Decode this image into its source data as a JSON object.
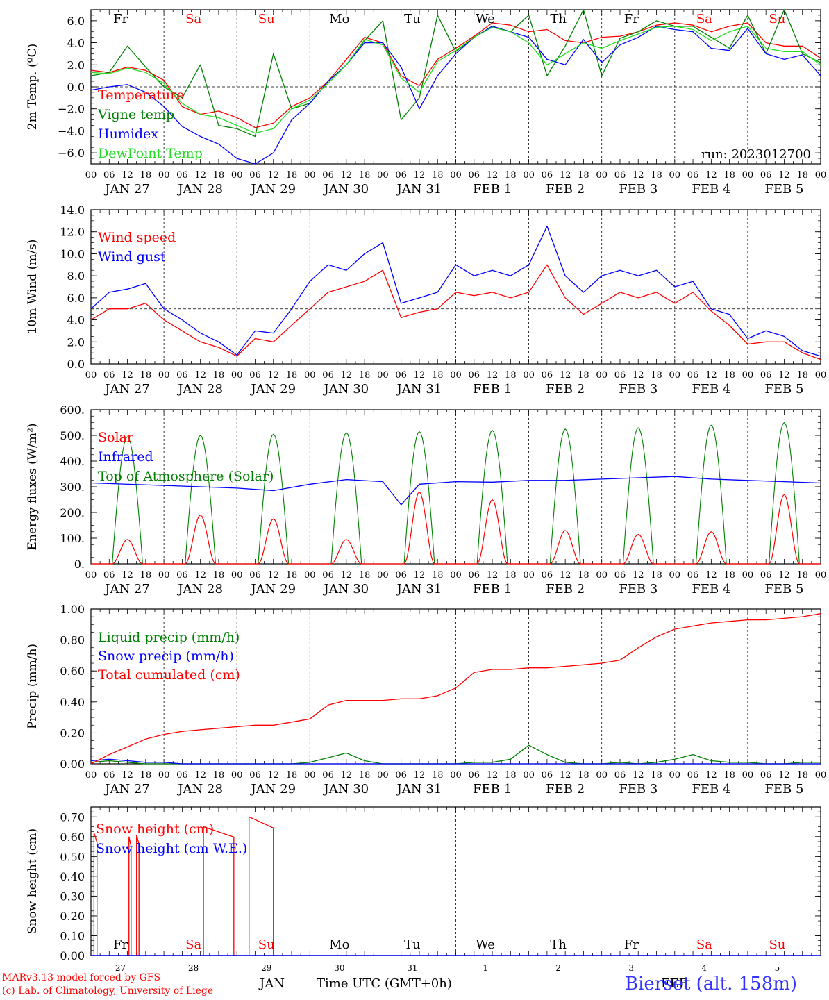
{
  "colors": {
    "red": "#ff0000",
    "green": "#008000",
    "blue": "#0000ff",
    "lightgreen": "#22dd22",
    "axis": "#000000"
  },
  "days": [
    "JAN 27",
    "JAN 28",
    "JAN 29",
    "JAN 30",
    "JAN 31",
    "FEB  1",
    "FEB  2",
    "FEB  3",
    "FEB  4",
    "FEB  5"
  ],
  "hour_ticks": [
    "00",
    "06",
    "12",
    "18"
  ],
  "weekdays": [
    {
      "label": "Fr",
      "color": "black"
    },
    {
      "label": "Sa",
      "color": "red"
    },
    {
      "label": "Su",
      "color": "red"
    },
    {
      "label": "Mo",
      "color": "black"
    },
    {
      "label": "Tu",
      "color": "black"
    },
    {
      "label": "We",
      "color": "black"
    },
    {
      "label": "Th",
      "color": "black"
    },
    {
      "label": "Fr",
      "color": "black"
    },
    {
      "label": "Sa",
      "color": "red"
    },
    {
      "label": "Su",
      "color": "red"
    }
  ],
  "bottom_day_numbers": [
    "27",
    "28",
    "29",
    "30",
    "31",
    "1",
    "2",
    "3",
    "4",
    "5"
  ],
  "footer": {
    "credit1": "MARv3.13 model forced by GFS",
    "credit2": "(c) Lab. of Climatology, University of Liege",
    "month_jan": "JAN",
    "month_feb": "FEB",
    "xlabel": "Time UTC (GMT+0h)",
    "station": "Bierset (alt. 158m)"
  },
  "chart_data": [
    {
      "type": "line",
      "ylabel": "2m Temp. (ºC)",
      "ylim": [
        -7,
        7
      ],
      "yticks": [
        "6.0",
        "4.0",
        "2.0",
        "0.0",
        "−2.0",
        "−4.0",
        "−6.0"
      ],
      "ytick_values": [
        6,
        4,
        2,
        0,
        -2,
        -4,
        -6
      ],
      "annotation": "run: 2023012700",
      "reference_line": 0,
      "x": [
        0,
        6,
        12,
        18,
        24,
        30,
        36,
        42,
        48,
        54,
        60,
        66,
        72,
        78,
        84,
        90,
        96,
        102,
        108,
        114,
        120,
        126,
        132,
        138,
        144,
        150,
        156,
        162,
        168,
        174,
        180,
        186,
        192,
        198,
        204,
        210,
        216,
        222,
        228,
        234,
        240
      ],
      "series": [
        {
          "name": "Temperature",
          "color": "red",
          "values": [
            1.5,
            1.3,
            1.8,
            1.5,
            0.6,
            -1.8,
            -2.5,
            -2.2,
            -2.8,
            -3.7,
            -3.3,
            -1.8,
            -1.0,
            0.5,
            2.5,
            4.5,
            4.0,
            1.0,
            0.1,
            2.5,
            3.5,
            4.6,
            5.8,
            5.6,
            5.0,
            5.2,
            4.2,
            4.0,
            4.5,
            4.6,
            5.0,
            5.6,
            5.8,
            5.6,
            5.0,
            5.5,
            5.8,
            4.0,
            3.7,
            3.7,
            2.6
          ]
        },
        {
          "name": "Vigne temp",
          "color": "green",
          "values": [
            1.0,
            1.3,
            3.7,
            1.8,
            0.0,
            -1.0,
            2.0,
            -3.5,
            -3.8,
            -4.5,
            3.0,
            -2.0,
            -1.5,
            0.5,
            2.0,
            4.2,
            6.0,
            -3.0,
            -1.0,
            6.5,
            3.2,
            4.5,
            5.5,
            5.0,
            6.5,
            1.0,
            3.7,
            7.0,
            1.0,
            4.4,
            5.0,
            6.0,
            5.5,
            5.5,
            4.5,
            3.5,
            6.5,
            3.0,
            7.0,
            3.0,
            2.2
          ]
        },
        {
          "name": "Humidex",
          "color": "blue",
          "values": [
            -0.3,
            0.0,
            0.2,
            -0.5,
            -1.8,
            -3.6,
            -4.5,
            -5.2,
            -6.5,
            -7.0,
            -6.0,
            -3.0,
            -1.5,
            0.5,
            2.0,
            4.0,
            4.0,
            1.8,
            -2.0,
            1.0,
            3.0,
            4.5,
            5.5,
            5.0,
            4.5,
            2.5,
            2.0,
            4.3,
            2.2,
            3.8,
            4.5,
            5.5,
            5.2,
            5.0,
            3.5,
            3.3,
            5.3,
            3.0,
            2.5,
            2.9,
            1.0
          ]
        },
        {
          "name": "DewPoint Temp",
          "color": "lightgreen",
          "values": [
            1.3,
            1.2,
            1.7,
            1.3,
            0.3,
            -1.5,
            -2.5,
            -2.8,
            -3.5,
            -4.2,
            -3.8,
            -2.0,
            -1.2,
            0.3,
            2.0,
            4.3,
            3.8,
            0.8,
            -0.5,
            2.3,
            3.3,
            4.5,
            5.4,
            5.0,
            4.0,
            2.0,
            3.0,
            4.0,
            3.5,
            4.2,
            4.8,
            5.4,
            5.5,
            5.2,
            4.2,
            5.0,
            5.5,
            3.5,
            3.2,
            3.2,
            2.0
          ]
        }
      ]
    },
    {
      "type": "line",
      "ylabel": "10m Wind (m/s)",
      "ylim": [
        0,
        14
      ],
      "yticks": [
        "14.0",
        "12.0",
        "10.0",
        "8.0",
        "6.0",
        "4.0",
        "2.0",
        "0.0"
      ],
      "ytick_values": [
        14,
        12,
        10,
        8,
        6,
        4,
        2,
        0
      ],
      "reference_line": 5,
      "x": [
        0,
        6,
        12,
        18,
        24,
        30,
        36,
        42,
        48,
        54,
        60,
        66,
        72,
        78,
        84,
        90,
        96,
        102,
        108,
        114,
        120,
        126,
        132,
        138,
        144,
        150,
        156,
        162,
        168,
        174,
        180,
        186,
        192,
        198,
        204,
        210,
        216,
        222,
        228,
        234,
        240
      ],
      "series": [
        {
          "name": "Wind speed",
          "color": "red",
          "values": [
            4.0,
            5.0,
            5.0,
            5.5,
            4.0,
            3.0,
            2.0,
            1.5,
            0.7,
            2.3,
            2.0,
            3.5,
            5.0,
            6.5,
            7.0,
            7.5,
            8.5,
            4.2,
            4.7,
            5.0,
            6.5,
            6.2,
            6.5,
            6.0,
            6.5,
            9.0,
            6.0,
            4.5,
            5.5,
            6.5,
            6.0,
            6.5,
            5.5,
            6.5,
            4.8,
            3.5,
            1.8,
            2.0,
            2.0,
            1.0,
            0.4
          ]
        },
        {
          "name": "Wind gust",
          "color": "blue",
          "values": [
            5.0,
            6.5,
            6.8,
            7.3,
            5.0,
            4.0,
            2.8,
            2.0,
            0.8,
            3.0,
            2.8,
            5.0,
            7.5,
            9.0,
            8.5,
            10.0,
            11.0,
            5.5,
            6.0,
            6.5,
            9.0,
            8.0,
            8.5,
            8.0,
            9.0,
            12.5,
            8.0,
            6.5,
            8.0,
            8.5,
            8.0,
            8.5,
            7.0,
            7.5,
            5.0,
            4.5,
            2.3,
            3.0,
            2.5,
            1.2,
            0.7
          ]
        }
      ]
    },
    {
      "type": "line",
      "ylabel": "Energy fluxes (W/m²)",
      "ylim": [
        0,
        600
      ],
      "yticks": [
        "600.",
        "500.",
        "400.",
        "300.",
        "200.",
        "100.",
        "0."
      ],
      "ytick_values": [
        600,
        500,
        400,
        300,
        200,
        100,
        0
      ],
      "daily_peaks": {
        "top_of_atmosphere": [
          495,
          500,
          505,
          510,
          515,
          520,
          525,
          530,
          540,
          550
        ],
        "solar": [
          95,
          190,
          175,
          95,
          280,
          250,
          130,
          115,
          125,
          270
        ]
      },
      "infrared_x": [
        0,
        24,
        48,
        60,
        72,
        84,
        96,
        102,
        108,
        120,
        132,
        144,
        156,
        168,
        180,
        192,
        204,
        216,
        228,
        240
      ],
      "infrared_values": [
        315,
        305,
        295,
        285,
        310,
        328,
        320,
        230,
        310,
        320,
        318,
        325,
        325,
        330,
        335,
        340,
        330,
        325,
        320,
        315
      ],
      "series": [
        {
          "name": "Solar",
          "color": "red"
        },
        {
          "name": "Infrared",
          "color": "blue"
        },
        {
          "name": "Top of Atmosphere (Solar)",
          "color": "green"
        }
      ]
    },
    {
      "type": "line",
      "ylabel": "Precip (mm/h)",
      "ylim": [
        0,
        1
      ],
      "yticks": [
        "1.00",
        "0.80",
        "0.60",
        "0.40",
        "0.20",
        "0.00"
      ],
      "ytick_values": [
        1.0,
        0.8,
        0.6,
        0.4,
        0.2,
        0.0
      ],
      "x": [
        0,
        6,
        12,
        18,
        24,
        30,
        36,
        42,
        48,
        54,
        60,
        66,
        72,
        78,
        84,
        90,
        96,
        102,
        108,
        114,
        120,
        126,
        132,
        138,
        144,
        150,
        156,
        162,
        168,
        174,
        180,
        186,
        192,
        198,
        204,
        210,
        216,
        222,
        228,
        234,
        240
      ],
      "series": [
        {
          "name": "Liquid precip (mm/h)",
          "color": "green",
          "values": [
            0.01,
            0.02,
            0.01,
            0.0,
            0.0,
            0.0,
            0.0,
            0.0,
            0.0,
            0.0,
            0.0,
            0.0,
            0.01,
            0.04,
            0.07,
            0.02,
            0.0,
            0.0,
            0.0,
            0.0,
            0.0,
            0.01,
            0.01,
            0.03,
            0.12,
            0.06,
            0.01,
            0.0,
            0.0,
            0.01,
            0.0,
            0.01,
            0.03,
            0.06,
            0.02,
            0.01,
            0.01,
            0.0,
            0.0,
            0.01,
            0.01
          ]
        },
        {
          "name": "Snow precip (mm/h)",
          "color": "blue",
          "values": [
            0.02,
            0.03,
            0.02,
            0.01,
            0.01,
            0.0,
            0.0,
            0.0,
            0.0,
            0.0,
            0.0,
            0.0,
            0.0,
            0.0,
            0.0,
            0.0,
            0.0,
            0.0,
            0.0,
            0.0,
            0.0,
            0.0,
            0.0,
            0.0,
            0.0,
            0.0,
            0.0,
            0.0,
            0.0,
            0.0,
            0.0,
            0.0,
            0.0,
            0.0,
            0.0,
            0.0,
            0.0,
            0.0,
            0.0,
            0.0,
            0.0
          ]
        },
        {
          "name": "Total cumulated (cm)",
          "color": "red",
          "values": [
            0.0,
            0.06,
            0.11,
            0.16,
            0.19,
            0.21,
            0.22,
            0.23,
            0.24,
            0.25,
            0.25,
            0.27,
            0.29,
            0.38,
            0.41,
            0.41,
            0.41,
            0.42,
            0.42,
            0.44,
            0.49,
            0.59,
            0.61,
            0.61,
            0.62,
            0.62,
            0.63,
            0.64,
            0.65,
            0.67,
            0.75,
            0.82,
            0.87,
            0.89,
            0.91,
            0.92,
            0.93,
            0.93,
            0.94,
            0.95,
            0.97
          ]
        }
      ]
    },
    {
      "type": "line",
      "ylabel": "Snow height (cm)",
      "ylim": [
        0,
        0.75
      ],
      "yticks": [
        "0.70",
        "0.60",
        "0.50",
        "0.40",
        "0.30",
        "0.20",
        "0.10",
        "0.00"
      ],
      "ytick_values": [
        0.7,
        0.6,
        0.5,
        0.4,
        0.3,
        0.2,
        0.1,
        0.0
      ],
      "snow_events": [
        {
          "start": 1,
          "end": 2,
          "height": 0.62
        },
        {
          "start": 12.5,
          "end": 13.2,
          "height": 0.6
        },
        {
          "start": 15,
          "end": 15.8,
          "height": 0.61
        },
        {
          "start": 37,
          "end": 47,
          "height": 0.65
        },
        {
          "start": 52,
          "end": 60,
          "height": 0.7
        }
      ],
      "series": [
        {
          "name": "Snow height (cm)",
          "color": "red"
        },
        {
          "name": "Snow height (cm W.E.)",
          "color": "blue"
        }
      ]
    }
  ]
}
